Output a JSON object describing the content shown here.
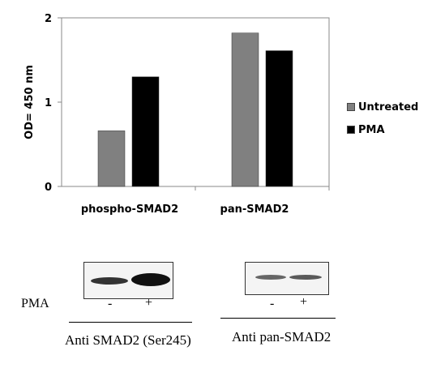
{
  "chart_data": {
    "type": "bar",
    "categories": [
      "phospho-SMAD2",
      "pan-SMAD2"
    ],
    "series": [
      {
        "name": "Untreated",
        "values": [
          0.66,
          1.82
        ],
        "color": "#808080"
      },
      {
        "name": "PMA",
        "values": [
          1.3,
          1.61
        ],
        "color": "#000000"
      }
    ],
    "ylabel": "OD= 450 nm",
    "ylim": [
      0,
      2
    ],
    "yticks": [
      "0",
      "1",
      "2"
    ],
    "legend_position": "right"
  },
  "western_blot": {
    "row_label": "PMA",
    "panels": [
      {
        "signs": [
          "-",
          "+"
        ],
        "caption": "Anti SMAD2 (Ser245)",
        "band_intensity": [
          0.6,
          1.0
        ]
      },
      {
        "signs": [
          "-",
          "+"
        ],
        "caption": "Anti pan-SMAD2",
        "band_intensity": [
          0.45,
          0.5
        ]
      }
    ]
  }
}
